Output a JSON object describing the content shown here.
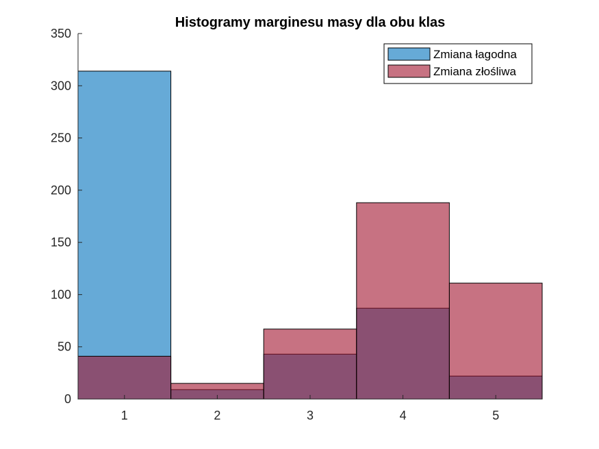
{
  "chart_data": {
    "type": "bar",
    "title": "Histogramy marginesu masy dla obu klas",
    "xlabel": "",
    "ylabel": "",
    "categories": [
      "1",
      "2",
      "3",
      "4",
      "5"
    ],
    "x": [
      1,
      2,
      3,
      4,
      5
    ],
    "xlim": [
      0.5,
      5.5
    ],
    "ylim": [
      0,
      350
    ],
    "yticks": [
      0,
      50,
      100,
      150,
      200,
      250,
      300,
      350
    ],
    "grid": false,
    "overlay": true,
    "legend_position": "top-right",
    "series": [
      {
        "name": "Zmiana łagodna",
        "values": [
          314,
          9,
          43,
          87,
          22
        ],
        "color": "#0072BD",
        "alpha": 0.6
      },
      {
        "name": "Zmiana złośliwa",
        "values": [
          41,
          15,
          67,
          188,
          111
        ],
        "color": "#A2142F",
        "alpha": 0.6
      }
    ]
  }
}
